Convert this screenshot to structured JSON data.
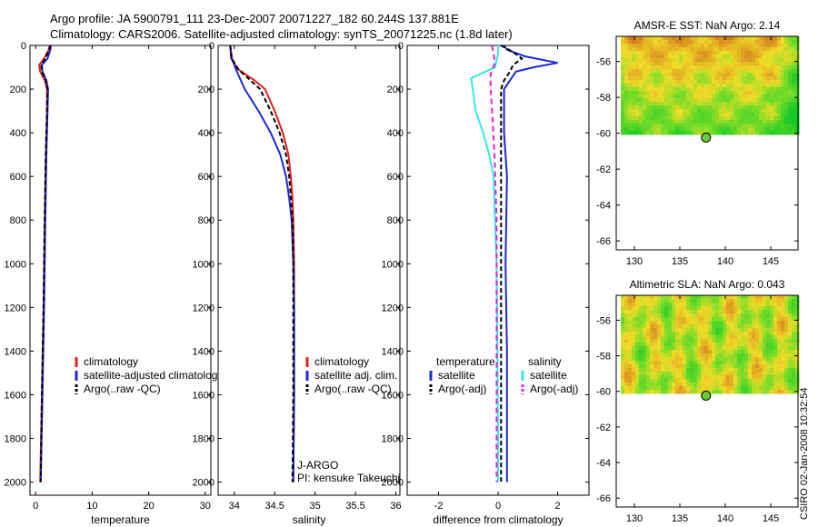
{
  "header": {
    "line1": "Argo profile: JA 5900791_111 23-Dec-2007 20071227_182 60.244S 137.881E",
    "line2": "Climatology: CARS2006. Satellite-adjusted climatology: synTS_20071225.nc (1.8d later)"
  },
  "footer": {
    "credit": "CSIRO 02-Jan-2008 10:32:54"
  },
  "colors": {
    "red": "#e02020",
    "blue": "#1c28d8",
    "black": "#000000",
    "cyan": "#33e8e8",
    "magenta": "#e020e0"
  },
  "chart_data": [
    {
      "type": "line",
      "xlabel": "temperature",
      "ylabel": "",
      "xlim": [
        -1,
        31
      ],
      "ylim": [
        2060,
        0
      ],
      "y_inverted": true,
      "xticks": [
        0,
        10,
        20,
        30
      ],
      "yticks": [
        0,
        200,
        400,
        600,
        800,
        1000,
        1200,
        1400,
        1600,
        1800,
        2000
      ],
      "legend": {
        "position": "lower-right",
        "entries": [
          "climatology",
          "satellite-adjusted climatology",
          "Argo(..raw -QC)"
        ]
      },
      "series": [
        {
          "name": "climatology",
          "color": "red",
          "dash": "",
          "points": [
            [
              2.5,
              0
            ],
            [
              2.3,
              20
            ],
            [
              1.5,
              60
            ],
            [
              0.6,
              90
            ],
            [
              0.8,
              120
            ],
            [
              1.6,
              160
            ],
            [
              2.0,
              200
            ],
            [
              2.0,
              300
            ],
            [
              1.8,
              500
            ],
            [
              1.6,
              800
            ],
            [
              1.4,
              1200
            ],
            [
              1.1,
              1600
            ],
            [
              0.8,
              2000
            ]
          ]
        },
        {
          "name": "satellite-adjusted climatology",
          "color": "blue",
          "dash": "",
          "points": [
            [
              2.7,
              0
            ],
            [
              2.6,
              20
            ],
            [
              2.1,
              60
            ],
            [
              1.1,
              90
            ],
            [
              1.2,
              120
            ],
            [
              1.9,
              160
            ],
            [
              2.2,
              200
            ],
            [
              2.1,
              300
            ],
            [
              1.9,
              500
            ],
            [
              1.7,
              800
            ],
            [
              1.5,
              1200
            ],
            [
              1.2,
              1600
            ],
            [
              0.9,
              2000
            ]
          ]
        },
        {
          "name": "Argo(..raw -QC)",
          "color": "black",
          "dash": "5,3",
          "points": [
            [
              2.6,
              0
            ],
            [
              2.4,
              20
            ],
            [
              1.7,
              60
            ],
            [
              1.0,
              90
            ],
            [
              1.1,
              120
            ],
            [
              1.8,
              160
            ],
            [
              2.1,
              200
            ],
            [
              2.0,
              300
            ],
            [
              1.8,
              500
            ],
            [
              1.6,
              800
            ],
            [
              1.4,
              1200
            ],
            [
              1.1,
              1600
            ],
            [
              0.9,
              2000
            ]
          ]
        }
      ]
    },
    {
      "type": "line",
      "xlabel": "salinity",
      "ylabel": "",
      "xlim": [
        33.8,
        36.05
      ],
      "ylim": [
        2060,
        0
      ],
      "y_inverted": true,
      "xticks": [
        34,
        34.5,
        35,
        35.5,
        36
      ],
      "yticks": [
        0,
        200,
        400,
        600,
        800,
        1000,
        1200,
        1400,
        1600,
        1800,
        2000
      ],
      "legend": {
        "position": "lower-right",
        "entries": [
          "climatology",
          "satellite adj. clim.",
          "Argo(..raw -QC)"
        ]
      },
      "annotations": [
        "J-ARGO",
        "PI: kensuke Takeuchi"
      ],
      "series": [
        {
          "name": "climatology",
          "color": "red",
          "dash": "",
          "points": [
            [
              33.95,
              0
            ],
            [
              33.96,
              60
            ],
            [
              34.05,
              110
            ],
            [
              34.25,
              160
            ],
            [
              34.38,
              200
            ],
            [
              34.5,
              300
            ],
            [
              34.6,
              400
            ],
            [
              34.67,
              500
            ],
            [
              34.7,
              600
            ],
            [
              34.72,
              700
            ],
            [
              34.73,
              800
            ],
            [
              34.74,
              1000
            ],
            [
              34.74,
              1200
            ],
            [
              34.74,
              1600
            ],
            [
              34.73,
              2000
            ]
          ]
        },
        {
          "name": "satellite adj. clim.",
          "color": "blue",
          "dash": "",
          "points": [
            [
              33.95,
              0
            ],
            [
              33.97,
              60
            ],
            [
              34.02,
              110
            ],
            [
              34.08,
              160
            ],
            [
              34.13,
              200
            ],
            [
              34.3,
              300
            ],
            [
              34.45,
              400
            ],
            [
              34.57,
              500
            ],
            [
              34.64,
              600
            ],
            [
              34.68,
              700
            ],
            [
              34.71,
              800
            ],
            [
              34.73,
              1000
            ],
            [
              34.74,
              1200
            ],
            [
              34.74,
              1600
            ],
            [
              34.73,
              2000
            ]
          ]
        },
        {
          "name": "Argo(..raw -QC)",
          "color": "black",
          "dash": "5,3",
          "points": [
            [
              33.95,
              0
            ],
            [
              33.97,
              60
            ],
            [
              34.05,
              110
            ],
            [
              34.2,
              160
            ],
            [
              34.32,
              200
            ],
            [
              34.45,
              300
            ],
            [
              34.56,
              400
            ],
            [
              34.64,
              500
            ],
            [
              34.68,
              600
            ],
            [
              34.7,
              700
            ],
            [
              34.72,
              800
            ],
            [
              34.73,
              1000
            ],
            [
              34.73,
              1200
            ],
            [
              34.73,
              1600
            ],
            [
              34.72,
              2000
            ]
          ]
        }
      ]
    },
    {
      "type": "line",
      "xlabel": "difference from climatology",
      "ylabel": "",
      "xlim": [
        -3.05,
        3.05
      ],
      "ylim": [
        2060,
        0
      ],
      "y_inverted": true,
      "xticks": [
        -2,
        0,
        2
      ],
      "yticks": [
        0,
        200,
        400,
        600,
        800,
        1000,
        1200,
        1400,
        1600,
        1800,
        2000
      ],
      "legend": {
        "position": "lower-center",
        "columns": [
          {
            "title": "temperature",
            "entries": [
              "satellite",
              "Argo(-adj)"
            ]
          },
          {
            "title": "salinity",
            "entries": [
              "satellite",
              "Argo(-adj)"
            ]
          }
        ]
      },
      "series": [
        {
          "name": "satellite",
          "group": "temperature",
          "color": "blue",
          "dash": "",
          "points": [
            [
              0.2,
              0
            ],
            [
              0.3,
              20
            ],
            [
              0.9,
              50
            ],
            [
              2.0,
              80
            ],
            [
              1.2,
              100
            ],
            [
              0.6,
              120
            ],
            [
              0.4,
              160
            ],
            [
              0.2,
              200
            ],
            [
              0.2,
              400
            ],
            [
              0.3,
              600
            ],
            [
              0.25,
              1000
            ],
            [
              0.3,
              1400
            ],
            [
              0.3,
              2000
            ]
          ]
        },
        {
          "name": "Argo(-adj)",
          "group": "temperature",
          "color": "black",
          "dash": "5,3",
          "points": [
            [
              0.1,
              0
            ],
            [
              0.5,
              30
            ],
            [
              0.8,
              60
            ],
            [
              0.5,
              90
            ],
            [
              0.4,
              120
            ],
            [
              0.2,
              160
            ],
            [
              0.1,
              200
            ],
            [
              0.1,
              400
            ],
            [
              0.1,
              800
            ],
            [
              0.1,
              1200
            ],
            [
              0.1,
              1600
            ],
            [
              0.1,
              2000
            ]
          ]
        },
        {
          "name": "satellite",
          "group": "salinity",
          "color": "cyan",
          "dash": "",
          "points": [
            [
              0,
              0
            ],
            [
              0,
              40
            ],
            [
              -0.1,
              100
            ],
            [
              -0.9,
              150
            ],
            [
              -0.85,
              200
            ],
            [
              -0.75,
              300
            ],
            [
              -0.5,
              400
            ],
            [
              -0.3,
              500
            ],
            [
              -0.15,
              600
            ],
            [
              -0.1,
              800
            ],
            [
              -0.05,
              1000
            ],
            [
              -0.02,
              1400
            ],
            [
              0,
              1800
            ],
            [
              0,
              2000
            ]
          ]
        },
        {
          "name": "Argo(-adj)",
          "group": "salinity",
          "color": "magenta",
          "dash": "6,4",
          "points": [
            [
              -0.2,
              0
            ],
            [
              -0.15,
              40
            ],
            [
              -0.1,
              80
            ],
            [
              -0.25,
              130
            ],
            [
              -0.25,
              200
            ],
            [
              -0.2,
              300
            ],
            [
              -0.12,
              500
            ],
            [
              -0.05,
              800
            ],
            [
              -0.05,
              1200
            ],
            [
              -0.05,
              1600
            ],
            [
              -0.05,
              2000
            ]
          ]
        }
      ]
    },
    {
      "type": "heatmap",
      "title": "AMSR-E SST: NaN Argo: 2.14",
      "xlim": [
        128,
        148
      ],
      "ylim": [
        -66.5,
        -54.6
      ],
      "xticks": [
        130,
        135,
        140,
        145
      ],
      "yticks": [
        -56,
        -58,
        -60,
        -62,
        -64,
        -66
      ],
      "data_extent": {
        "lon": [
          128.5,
          148
        ],
        "lat": [
          -60.0,
          -54.6
        ]
      },
      "palette": "orange-yellow-green",
      "marker": {
        "lon": 137.88,
        "lat": -60.24
      }
    },
    {
      "type": "heatmap",
      "title": "Altimetric SLA: NaN Argo: 0.043",
      "xlim": [
        128,
        148
      ],
      "ylim": [
        -66.5,
        -54.6
      ],
      "xticks": [
        130,
        135,
        140,
        145
      ],
      "yticks": [
        -56,
        -58,
        -60,
        -62,
        -64,
        -66
      ],
      "data_extent": {
        "lon": [
          128.5,
          148
        ],
        "lat": [
          -60.0,
          -54.6
        ]
      },
      "palette": "yellow-green",
      "marker": {
        "lon": 137.88,
        "lat": -60.24
      }
    }
  ]
}
